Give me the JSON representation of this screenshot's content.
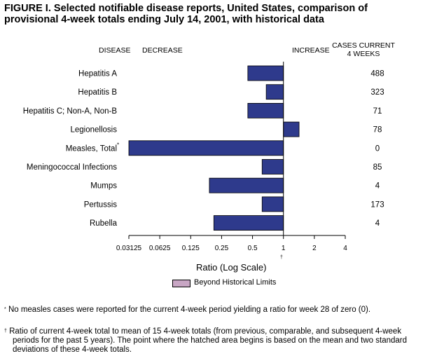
{
  "figure": {
    "title": "FIGURE I. Selected notifiable disease reports, United States, comparison of provisional 4-week totals ending July 14, 2001, with historical data"
  },
  "headers": {
    "disease": "DISEASE",
    "decrease": "DECREASE",
    "increase": "INCREASE",
    "cases_line1": "CASES CURRENT",
    "cases_line2": "4 WEEKS"
  },
  "chart_data": {
    "type": "bar",
    "orientation": "horizontal",
    "scale": "log2",
    "xlabel": "Ratio (Log Scale)",
    "xlabel_marker": "†",
    "xlim": [
      0.03125,
      4
    ],
    "reference_line": 1,
    "ticks": [
      "0.03125",
      "0.0625",
      "0.125",
      "0.25",
      "0.5",
      "1",
      "2",
      "4"
    ],
    "tick_values": [
      0.03125,
      0.0625,
      0.125,
      0.25,
      0.5,
      1,
      2,
      4
    ],
    "bar_color": "#2e3a8c",
    "hatch_color": "#c8a6c4",
    "categories": [
      "Hepatitis A",
      "Hepatitis B",
      "Hepatitis C; Non-A, Non-B",
      "Legionellosis",
      "Measles, Total",
      "Meningococcal Infections",
      "Mumps",
      "Pertussis",
      "Rubella"
    ],
    "category_markers": [
      "",
      "",
      "",
      "",
      "*",
      "",
      "",
      "",
      ""
    ],
    "values": [
      0.45,
      0.68,
      0.45,
      1.42,
      0.03125,
      0.62,
      0.19,
      0.62,
      0.21
    ],
    "cases": [
      "488",
      "323",
      "71",
      "78",
      "0",
      "85",
      "4",
      "173",
      "4"
    ],
    "legend": "Beyond Historical Limits"
  },
  "footnotes": [
    {
      "mark": "*",
      "text": "No measles cases were reported for the current 4-week period yielding a ratio for week 28 of zero (0)."
    },
    {
      "mark": "†",
      "text": "Ratio of current 4-week total to mean of 15 4-week totals (from previous, comparable, and subsequent 4-week periods for the past 5 years). The point where the hatched area begins is based on the mean and two standard deviations of these 4-week totals."
    }
  ]
}
